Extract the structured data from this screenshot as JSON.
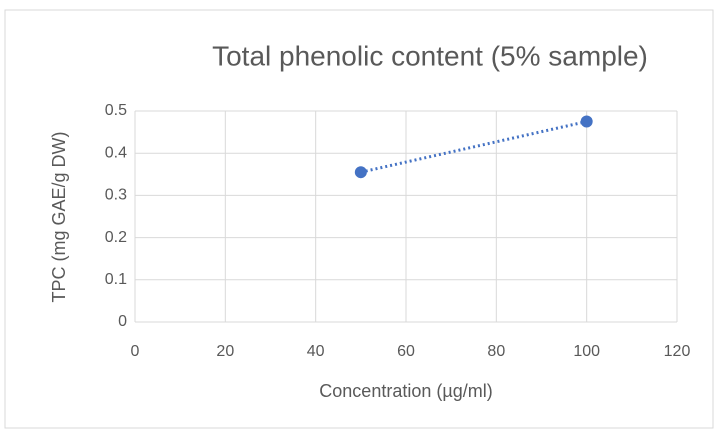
{
  "chart_data": {
    "type": "scatter",
    "title": "Total phenolic content (5% sample)",
    "x_label": "Concentration (µg/ml)",
    "y_label": "TPC (mg GAE/g DW)",
    "series": [
      {
        "x": [
          50,
          100
        ],
        "values": [
          0.355,
          0.475
        ],
        "color": "#4472c4"
      }
    ],
    "xlim": [
      0,
      120
    ],
    "xticks": [
      0,
      20,
      40,
      60,
      80,
      100,
      120
    ],
    "ylim": [
      0,
      0.5
    ],
    "yticks": [
      0,
      0.1,
      0.2,
      0.3,
      0.4,
      0.5
    ],
    "grid": true,
    "line_style": "dotted"
  }
}
